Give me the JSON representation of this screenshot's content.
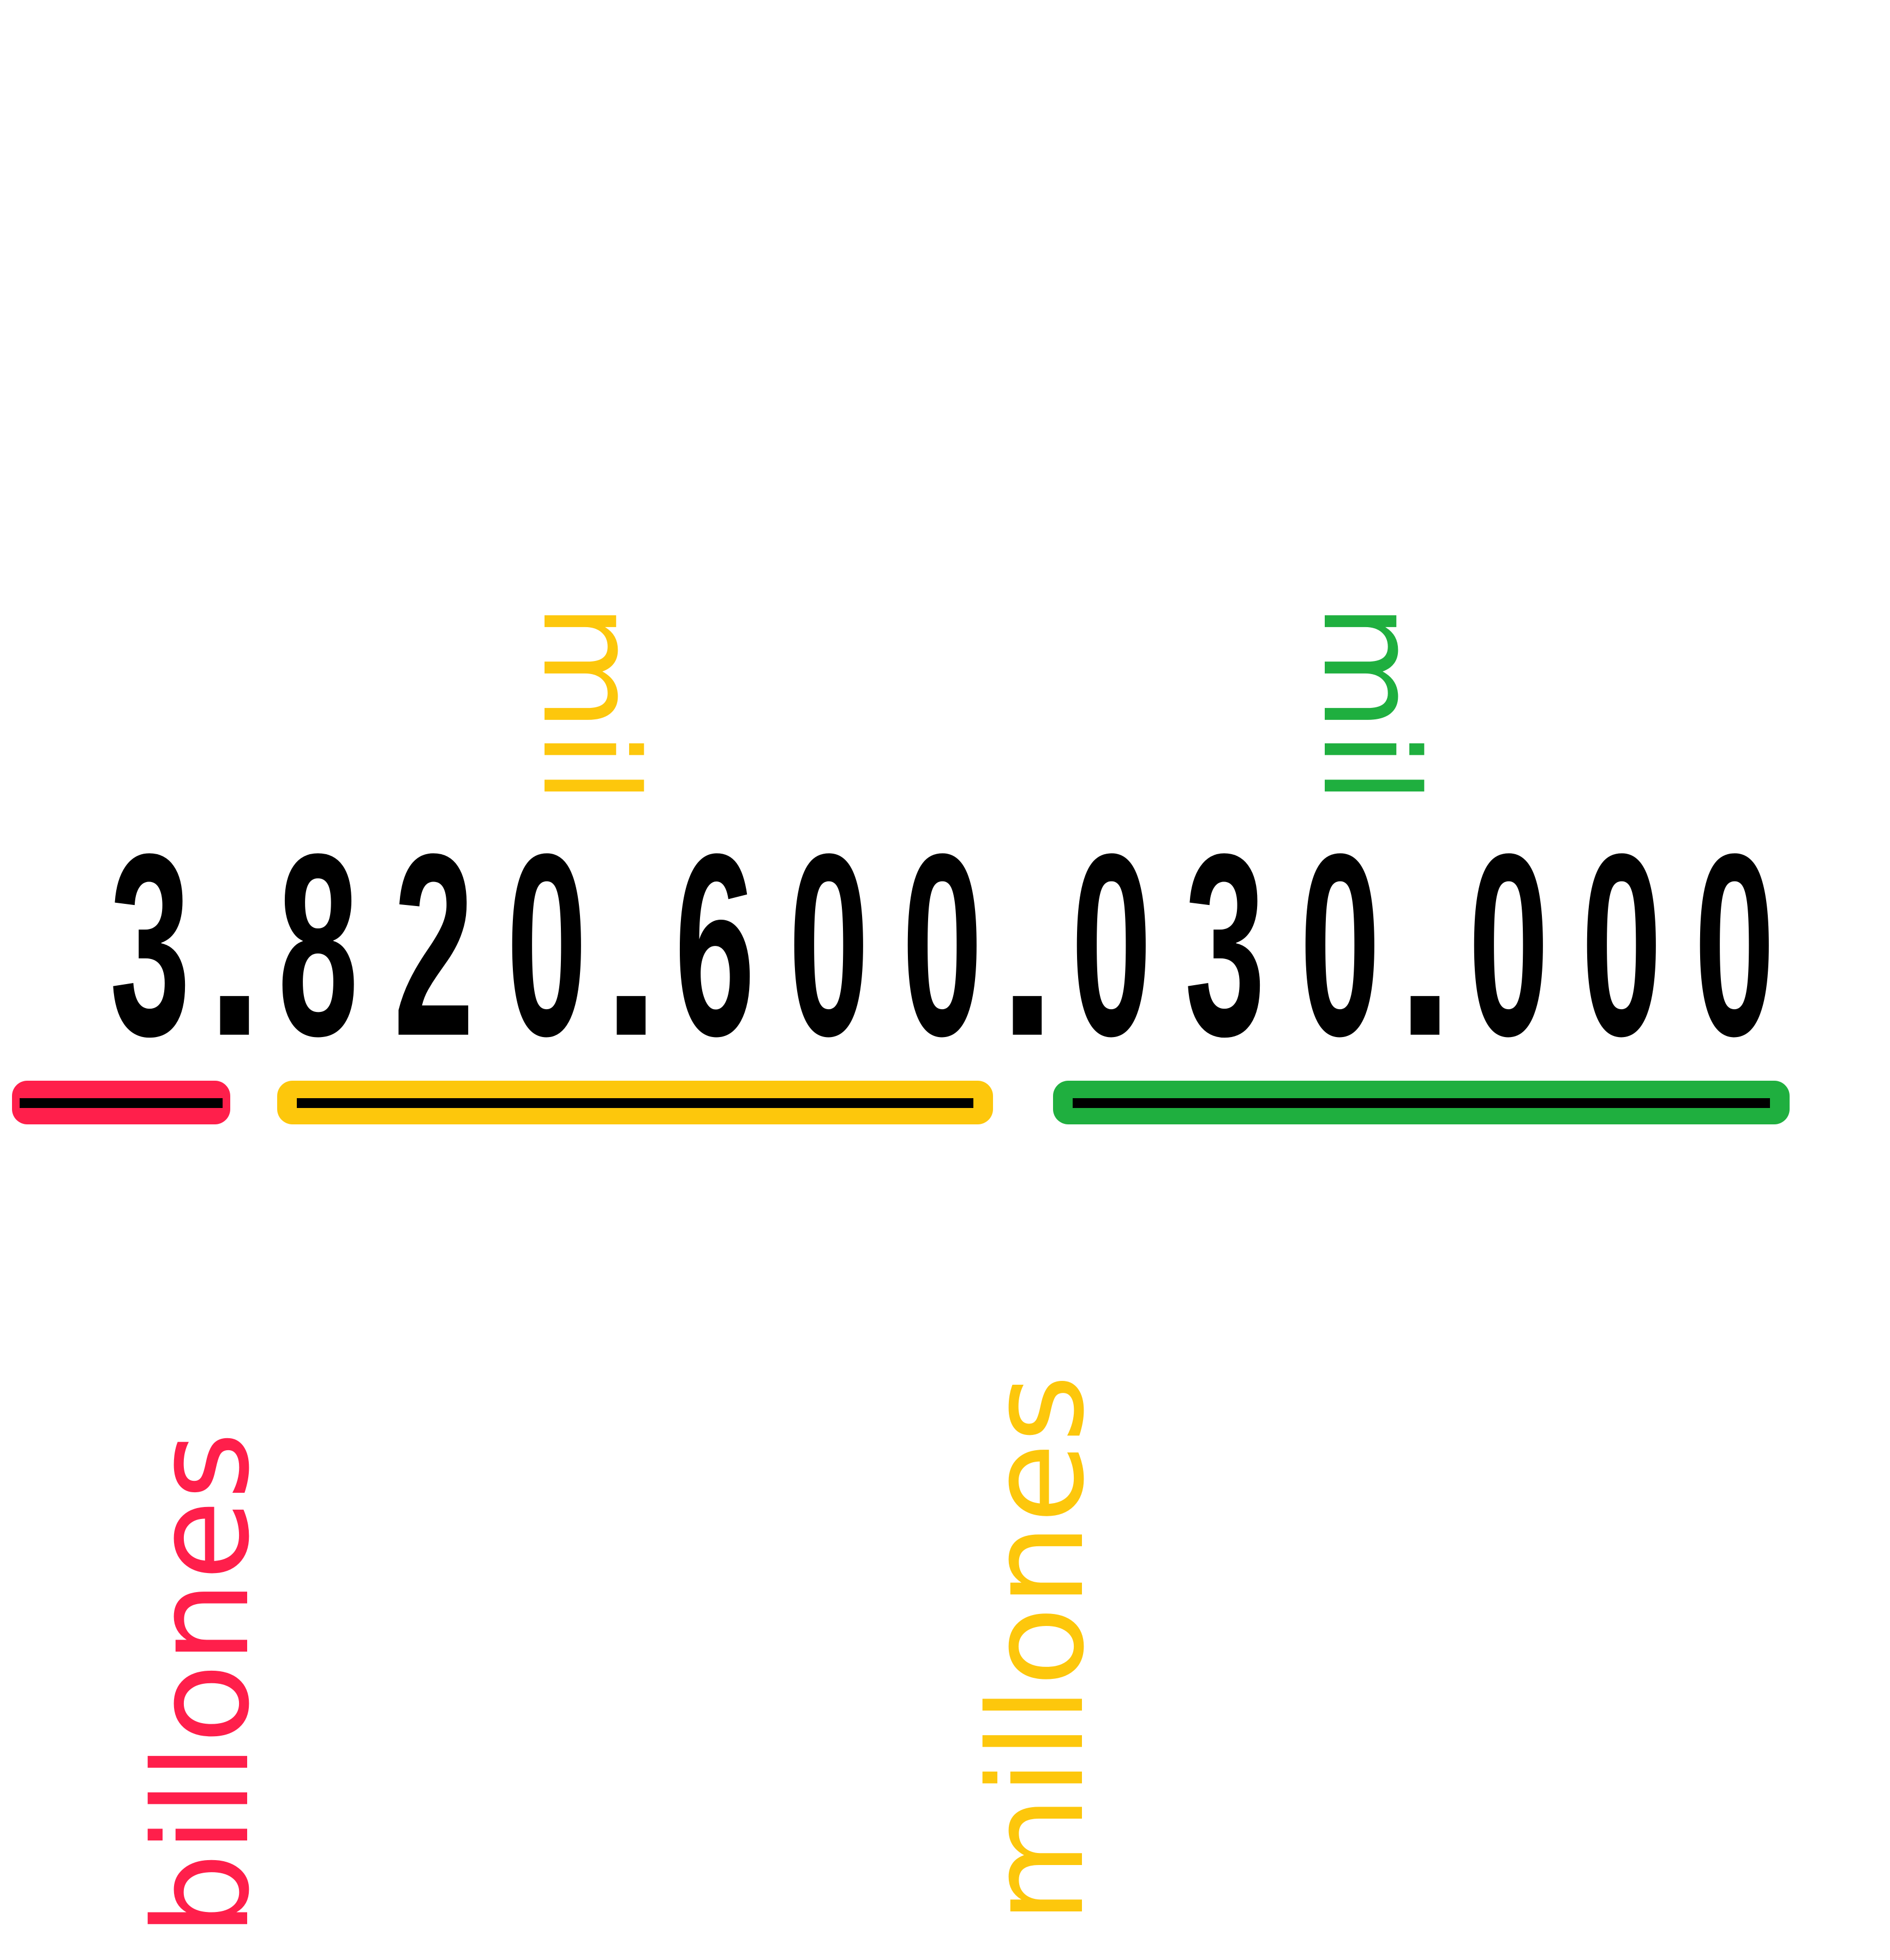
{
  "number": {
    "digits": [
      "3",
      ".",
      "8",
      "2",
      "0",
      ".",
      "6",
      "0",
      "0",
      ".",
      "0",
      "3",
      "0",
      ".",
      "0",
      "0",
      "0"
    ]
  },
  "groups": [
    {
      "id": "billones",
      "label": "billones",
      "color": "#FF1F4B"
    },
    {
      "id": "mil-billones",
      "label": "mil",
      "color": "#FDC70C"
    },
    {
      "id": "millones",
      "label": "millones",
      "color": "#FDC70C"
    },
    {
      "id": "mil-unidades",
      "label": "mil",
      "color": "#1FAF3F"
    }
  ]
}
